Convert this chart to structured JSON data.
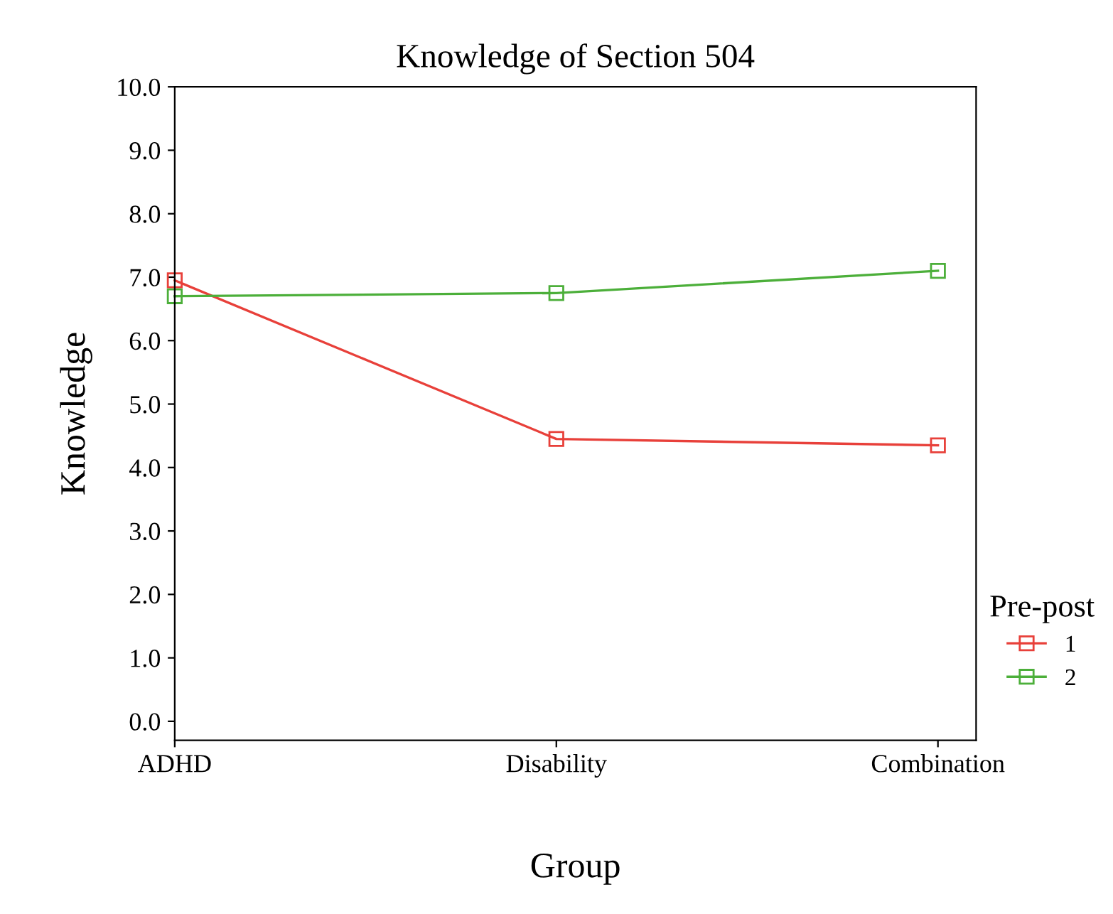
{
  "chart_data": {
    "type": "line",
    "title": "Knowledge of Section 504",
    "xlabel": "Group",
    "ylabel": "Knowledge",
    "legend_title": "Pre-post",
    "categories": [
      "ADHD",
      "Disability",
      "Combination"
    ],
    "series": [
      {
        "name": "1",
        "color": "#e8403a",
        "values": [
          6.95,
          4.45,
          4.35
        ]
      },
      {
        "name": "2",
        "color": "#4caf3a",
        "values": [
          6.7,
          6.75,
          7.1
        ]
      }
    ],
    "ylim": [
      -0.3,
      10.0
    ],
    "yticks": [
      {
        "value": 0,
        "label": "0.0"
      },
      {
        "value": 1,
        "label": "1.0"
      },
      {
        "value": 2,
        "label": "2.0"
      },
      {
        "value": 3,
        "label": "3.0"
      },
      {
        "value": 4,
        "label": "4.0"
      },
      {
        "value": 5,
        "label": "5.0"
      },
      {
        "value": 6,
        "label": "6.0"
      },
      {
        "value": 7,
        "label": "7.0"
      },
      {
        "value": 8,
        "label": "8.0"
      },
      {
        "value": 9,
        "label": "9.0"
      },
      {
        "value": 10,
        "label": "10.0"
      }
    ],
    "marker": "square",
    "line_style": "solid",
    "grid": false,
    "legend": "right"
  }
}
